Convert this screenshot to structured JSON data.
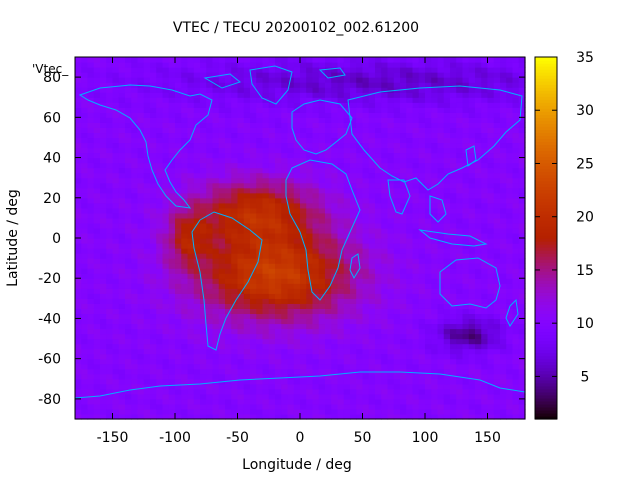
{
  "chart_data": {
    "type": "heatmap",
    "title": "VTEC / TECU 20200102_002.61200",
    "xlabel": "Longitude / deg",
    "ylabel": "Latitude / deg",
    "series_label": "'Vtec_",
    "xlim": [
      -180,
      180
    ],
    "ylim": [
      -90,
      90
    ],
    "x_ticks": [
      -150,
      -100,
      -50,
      0,
      50,
      100,
      150
    ],
    "y_ticks": [
      -80,
      -60,
      -40,
      -20,
      0,
      20,
      40,
      60,
      80
    ],
    "colorbar": {
      "range": [
        1,
        35
      ],
      "ticks": [
        5,
        10,
        15,
        20,
        25,
        30,
        35
      ],
      "palette": "gnuplot rgbformulae 7,5,15"
    },
    "background_tec": 10,
    "features": [
      {
        "name": "equatorial anomaly crest (south)",
        "lon": -20,
        "lat": -18,
        "sigma_lon": 45,
        "sigma_lat": 16,
        "peak_tec": 12
      },
      {
        "name": "equatorial anomaly crest (north)",
        "lon": -35,
        "lat": 14,
        "sigma_lon": 35,
        "sigma_lat": 11,
        "peak_tec": 9
      },
      {
        "name": "anomaly hot spot",
        "lon": -90,
        "lat": 0,
        "sigma_lon": 12,
        "sigma_lat": 10,
        "peak_tec": 6
      },
      {
        "name": "southern low",
        "lon": 135,
        "lat": -48,
        "sigma_lon": 18,
        "sigma_lat": 6,
        "peak_tec": -6
      },
      {
        "name": "northern polar low",
        "lon": 60,
        "lat": 78,
        "sigma_lon": 120,
        "sigma_lat": 8,
        "peak_tec": -4
      }
    ]
  }
}
